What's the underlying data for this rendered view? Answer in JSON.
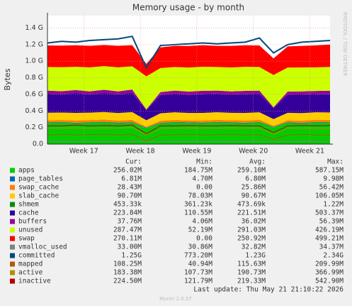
{
  "chart_data": {
    "type": "stacked-area",
    "title": "Memory usage - by month",
    "ylabel": "Bytes",
    "watermark": "RRDTOOL / TOBI OETIKER",
    "last_update": "Last update: Thu May 21 21:10:22 2026",
    "version": "Munin 2.0.57",
    "legend_header": [
      "Cur:",
      "Min:",
      "Avg:",
      "Max:"
    ],
    "x": [
      0,
      1.75,
      3.5,
      5.25,
      7,
      8.75,
      10.5,
      12.25,
      14,
      15.75,
      17.5,
      19.25,
      21,
      22.75,
      24.5,
      26.25,
      28,
      29.75,
      31.5,
      33.25,
      35
    ],
    "xlim": [
      0,
      35
    ],
    "xticks": [
      {
        "value": 4.5,
        "label": "Week 17"
      },
      {
        "value": 11.5,
        "label": "Week 18"
      },
      {
        "value": 18.5,
        "label": "Week 19"
      },
      {
        "value": 25.5,
        "label": "Week 20"
      },
      {
        "value": 32.5,
        "label": "Week 21"
      }
    ],
    "ylim": [
      0,
      1550000000
    ],
    "yticks": [
      {
        "value": 0,
        "label": "0.0"
      },
      {
        "value": 200000000,
        "label": "0.2 G"
      },
      {
        "value": 400000000,
        "label": "0.4 G"
      },
      {
        "value": 600000000,
        "label": "0.6 G"
      },
      {
        "value": 800000000,
        "label": "0.8 G"
      },
      {
        "value": 1000000000,
        "label": "1.0 G"
      },
      {
        "value": 1200000000,
        "label": "1.2 G"
      },
      {
        "value": 1400000000,
        "label": "1.4 G"
      }
    ],
    "grid": true,
    "series": [
      {
        "name": "apps",
        "color": "#00cc00",
        "kind": "area",
        "summary": [
          "256.02M",
          "184.75M",
          "259.10M",
          "587.15M"
        ],
        "values": [
          255000000.0,
          260000000.0,
          250000000.0,
          258000000.0,
          262000000.0,
          252000000.0,
          257000000.0,
          195000000.0,
          250000000.0,
          260000000.0,
          255000000.0,
          252000000.0,
          260000000.0,
          256000000.0,
          250000000.0,
          261000000.0,
          205000000.0,
          255000000.0,
          250000000.0,
          260000000.0,
          256000000.0
        ]
      },
      {
        "name": "page_tables",
        "color": "#0066b3",
        "kind": "area",
        "summary": [
          "6.81M",
          "4.70M",
          "6.80M",
          "9.98M"
        ],
        "values": [
          6800000.0,
          6900000.0,
          6700000.0,
          6800000.0,
          7000000.0,
          6800000.0,
          6900000.0,
          4700000.0,
          6700000.0,
          6800000.0,
          6900000.0,
          6800000.0,
          6700000.0,
          6900000.0,
          6800000.0,
          6800000.0,
          5000000.0,
          6800000.0,
          6900000.0,
          6800000.0,
          6810000.0
        ]
      },
      {
        "name": "swap_cache",
        "color": "#ff8000",
        "kind": "area",
        "summary": [
          "28.43M",
          "0.00",
          "25.86M",
          "56.42M"
        ],
        "values": [
          26000000.0,
          24000000.0,
          28000000.0,
          25000000.0,
          27000000.0,
          26000000.0,
          29000000.0,
          10000000.0,
          25000000.0,
          26000000.0,
          24000000.0,
          27000000.0,
          26000000.0,
          25000000.0,
          28000000.0,
          26000000.0,
          12000000.0,
          25000000.0,
          27000000.0,
          26000000.0,
          28400000.0
        ]
      },
      {
        "name": "slab_cache",
        "color": "#ffcc00",
        "kind": "area",
        "summary": [
          "90.70M",
          "78.03M",
          "90.67M",
          "106.05M"
        ],
        "values": [
          91000000.0,
          90000000.0,
          92000000.0,
          90000000.0,
          91000000.0,
          90000000.0,
          93000000.0,
          78000000.0,
          90000000.0,
          91000000.0,
          90000000.0,
          91000000.0,
          92000000.0,
          90000000.0,
          91000000.0,
          90000000.0,
          80000000.0,
          91000000.0,
          90000000.0,
          91000000.0,
          90700000.0
        ]
      },
      {
        "name": "shmem",
        "color": "#008f00",
        "kind": "area",
        "summary": [
          "453.33k",
          "361.23k",
          "473.69k",
          "1.22M"
        ],
        "values": [
          470000.0,
          480000.0,
          460000.0,
          470000.0,
          480000.0,
          470000.0,
          490000.0,
          360000.0,
          460000.0,
          470000.0,
          480000.0,
          470000.0,
          460000.0,
          480000.0,
          470000.0,
          470000.0,
          380000.0,
          460000.0,
          470000.0,
          480000.0,
          453000.0
        ]
      },
      {
        "name": "cache",
        "color": "#330099",
        "kind": "area",
        "summary": [
          "223.84M",
          "110.55M",
          "221.51M",
          "503.37M"
        ],
        "values": [
          230000000.0,
          220000000.0,
          240000000.0,
          220000000.0,
          230000000.0,
          225000000.0,
          235000000.0,
          120000000.0,
          220000000.0,
          225000000.0,
          220000000.0,
          230000000.0,
          225000000.0,
          220000000.0,
          230000000.0,
          225000000.0,
          130000000.0,
          220000000.0,
          225000000.0,
          220000000.0,
          224000000.0
        ]
      },
      {
        "name": "buffers",
        "color": "#990099",
        "kind": "area",
        "summary": [
          "37.76M",
          "4.06M",
          "36.02M",
          "56.39M"
        ],
        "values": [
          36000000.0,
          37000000.0,
          35000000.0,
          36000000.0,
          38000000.0,
          36000000.0,
          37000000.0,
          10000000.0,
          35000000.0,
          36000000.0,
          37000000.0,
          36000000.0,
          35000000.0,
          37000000.0,
          36000000.0,
          36000000.0,
          12000000.0,
          35000000.0,
          36000000.0,
          37000000.0,
          37800000.0
        ]
      },
      {
        "name": "unused",
        "color": "#ccff00",
        "kind": "area",
        "summary": [
          "287.47M",
          "52.19M",
          "291.03M",
          "426.19M"
        ],
        "values": [
          285000000.0,
          290000000.0,
          280000000.0,
          290000000.0,
          285000000.0,
          290000000.0,
          280000000.0,
          400000000.0,
          290000000.0,
          285000000.0,
          290000000.0,
          290000000.0,
          285000000.0,
          290000000.0,
          290000000.0,
          285000000.0,
          390000000.0,
          290000000.0,
          290000000.0,
          285000000.0,
          287000000.0
        ]
      },
      {
        "name": "swap",
        "color": "#ff0000",
        "kind": "area",
        "summary": [
          "270.11M",
          "0.00",
          "250.92M",
          "499.21M"
        ],
        "values": [
          260000000.0,
          260000000.0,
          260000000.0,
          260000000.0,
          255000000.0,
          260000000.0,
          255000000.0,
          150000000.0,
          250000000.0,
          255000000.0,
          260000000.0,
          260000000.0,
          255000000.0,
          260000000.0,
          260000000.0,
          260000000.0,
          200000000.0,
          255000000.0,
          260000000.0,
          265000000.0,
          270000000.0
        ]
      },
      {
        "name": "vmalloc_used",
        "color": "#808080",
        "kind": "line",
        "summary": [
          "33.00M",
          "30.86M",
          "32.82M",
          "34.37M"
        ],
        "values": [
          33000000.0,
          33000000.0,
          32000000.0,
          33000000.0,
          33000000.0,
          33000000.0,
          34000000.0,
          31000000.0,
          33000000.0,
          33000000.0,
          33000000.0,
          32000000.0,
          33000000.0,
          33000000.0,
          33000000.0,
          33000000.0,
          31000000.0,
          33000000.0,
          33000000.0,
          33000000.0,
          33000000.0
        ]
      },
      {
        "name": "committed",
        "color": "#00487d",
        "kind": "line",
        "summary": [
          "1.25G",
          "773.20M",
          "1.23G",
          "2.34G"
        ],
        "values": [
          1220000000.0,
          1240000000.0,
          1230000000.0,
          1250000000.0,
          1260000000.0,
          1270000000.0,
          1300000000.0,
          920000000.0,
          1190000000.0,
          1200000000.0,
          1210000000.0,
          1220000000.0,
          1210000000.0,
          1220000000.0,
          1230000000.0,
          1280000000.0,
          1100000000.0,
          1200000000.0,
          1230000000.0,
          1240000000.0,
          1250000000.0
        ]
      },
      {
        "name": "mapped",
        "color": "#b35a00",
        "kind": "line",
        "summary": [
          "108.25M",
          "40.94M",
          "115.63M",
          "209.99M"
        ],
        "values": [
          110000000.0,
          120000000.0,
          110000000.0,
          115000000.0,
          120000000.0,
          110000000.0,
          120000000.0,
          41000000.0,
          110000000.0,
          115000000.0,
          120000000.0,
          110000000.0,
          115000000.0,
          120000000.0,
          110000000.0,
          115000000.0,
          60000000.0,
          110000000.0,
          120000000.0,
          110000000.0,
          108000000.0
        ]
      },
      {
        "name": "active",
        "color": "#b38f00",
        "kind": "line",
        "summary": [
          "183.38M",
          "107.73M",
          "190.73M",
          "366.99M"
        ],
        "values": [
          190000000.0,
          195000000.0,
          190000000.0,
          185000000.0,
          195000000.0,
          190000000.0,
          200000000.0,
          110000000.0,
          185000000.0,
          190000000.0,
          195000000.0,
          190000000.0,
          190000000.0,
          195000000.0,
          190000000.0,
          195000000.0,
          120000000.0,
          190000000.0,
          190000000.0,
          185000000.0,
          183000000.0
        ]
      },
      {
        "name": "inactive",
        "color": "#b30000",
        "kind": "line",
        "summary": [
          "224.50M",
          "121.79M",
          "219.33M",
          "542.90M"
        ],
        "values": [
          220000000.0,
          220000000.0,
          230000000.0,
          220000000.0,
          225000000.0,
          220000000.0,
          230000000.0,
          125000000.0,
          220000000.0,
          220000000.0,
          225000000.0,
          220000000.0,
          220000000.0,
          225000000.0,
          220000000.0,
          220000000.0,
          140000000.0,
          220000000.0,
          225000000.0,
          220000000.0,
          224500000.0
        ]
      }
    ]
  }
}
